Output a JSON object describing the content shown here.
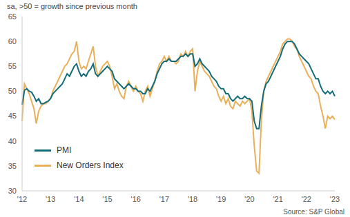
{
  "chart_data": {
    "type": "line",
    "subtitle": "sa, >50 = growth since previous month",
    "annotations": [
      "Source: S&P Global"
    ],
    "categories": [
      "'12",
      null,
      null,
      null,
      null,
      null,
      null,
      null,
      null,
      null,
      null,
      null,
      "'13",
      null,
      null,
      null,
      null,
      null,
      null,
      null,
      null,
      null,
      null,
      null,
      "'14",
      null,
      null,
      null,
      null,
      null,
      null,
      null,
      null,
      null,
      null,
      null,
      "'15",
      null,
      null,
      null,
      null,
      null,
      null,
      null,
      null,
      null,
      null,
      null,
      "'16",
      null,
      null,
      null,
      null,
      null,
      null,
      null,
      null,
      null,
      null,
      null,
      "'17",
      null,
      null,
      null,
      null,
      null,
      null,
      null,
      null,
      null,
      null,
      null,
      "'18",
      null,
      null,
      null,
      null,
      null,
      null,
      null,
      null,
      null,
      null,
      null,
      "'19",
      null,
      null,
      null,
      null,
      null,
      null,
      null,
      null,
      null,
      null,
      null,
      "'20",
      null,
      null,
      null,
      null,
      null,
      null,
      null,
      null,
      null,
      null,
      null,
      "'21",
      null,
      null,
      null,
      null,
      null,
      null,
      null,
      null,
      null,
      null,
      null,
      "'22",
      null,
      null,
      null,
      null,
      null,
      null,
      null,
      null,
      null,
      null,
      null,
      "'23"
    ],
    "series": [
      {
        "name": "PMI",
        "color": "#136c7a",
        "values": [
          47.3,
          50.2,
          50.5,
          50,
          49.8,
          49,
          48,
          48.5,
          47.5,
          47.5,
          47.8,
          48,
          48.5,
          49.5,
          50,
          50.5,
          51,
          51.5,
          52.5,
          53.5,
          53,
          54,
          55,
          55.5,
          54,
          53,
          53.5,
          53,
          54,
          54.5,
          55.5,
          53.5,
          53,
          53.5,
          54,
          54.5,
          55,
          54.5,
          54,
          52.5,
          52,
          51.5,
          51,
          50.5,
          51,
          51.5,
          51,
          50.5,
          50.5,
          50,
          50,
          49.5,
          49.5,
          50.5,
          50,
          51,
          52,
          53.5,
          54.5,
          55.5,
          56,
          56,
          56.5,
          56,
          56,
          56,
          56.5,
          57,
          57,
          57.5,
          57,
          57.5,
          57.5,
          55,
          55.5,
          56.5,
          55.5,
          55,
          54.5,
          54,
          53,
          52.5,
          52,
          51,
          50.5,
          50.5,
          49.5,
          49.5,
          48.5,
          48,
          48.5,
          49,
          48.5,
          48.5,
          49,
          48.5,
          48.5,
          48,
          44,
          42.5,
          42.5,
          47,
          50,
          51.5,
          52,
          53,
          54,
          55,
          56,
          57,
          58.5,
          59.5,
          60,
          60,
          60,
          59.5,
          58.5,
          57.5,
          57,
          56.5,
          56,
          55.5,
          54.5,
          53.5,
          52.5,
          52.5,
          51,
          50,
          49.5,
          50,
          49.5,
          50,
          49
        ]
      },
      {
        "name": "New Orders Index",
        "color": "#eab059",
        "values": [
          44,
          51.5,
          50.5,
          49.5,
          48,
          46.5,
          43.5,
          46,
          47,
          47.5,
          47.5,
          48,
          48.5,
          50,
          51,
          52,
          53,
          54,
          55,
          55.5,
          56.5,
          57.5,
          58,
          60,
          56,
          54.5,
          55,
          54.5,
          56,
          57.5,
          59,
          55,
          53,
          54,
          55,
          55.5,
          56,
          55,
          53,
          50.5,
          51.5,
          50,
          49,
          48.5,
          51,
          52,
          51,
          50,
          51,
          50,
          49.5,
          48,
          50,
          51,
          49,
          50.5,
          52,
          54,
          55.5,
          56,
          57,
          56,
          57,
          56,
          56,
          55.5,
          56,
          57.5,
          57,
          58,
          57,
          58,
          58.5,
          50,
          54,
          56,
          55,
          54,
          53.5,
          53,
          52,
          51,
          50.5,
          49,
          48,
          49,
          47.5,
          48.5,
          47,
          46.5,
          48,
          47.5,
          47,
          48,
          47.5,
          48,
          48.5,
          46,
          39,
          34,
          33.5,
          44,
          50,
          52,
          53,
          54,
          55,
          56,
          57,
          58,
          59.5,
          60,
          60.5,
          60.5,
          60,
          59,
          58.5,
          57,
          56,
          55,
          54,
          53,
          52.5,
          51,
          50,
          49.5,
          47,
          45,
          42.5,
          45,
          44.5,
          45,
          44.3
        ]
      }
    ],
    "ylim": [
      30,
      65
    ],
    "yticks": [
      30,
      35,
      40,
      45,
      50,
      55,
      60,
      65
    ],
    "grid": false,
    "legend": "lower left"
  }
}
